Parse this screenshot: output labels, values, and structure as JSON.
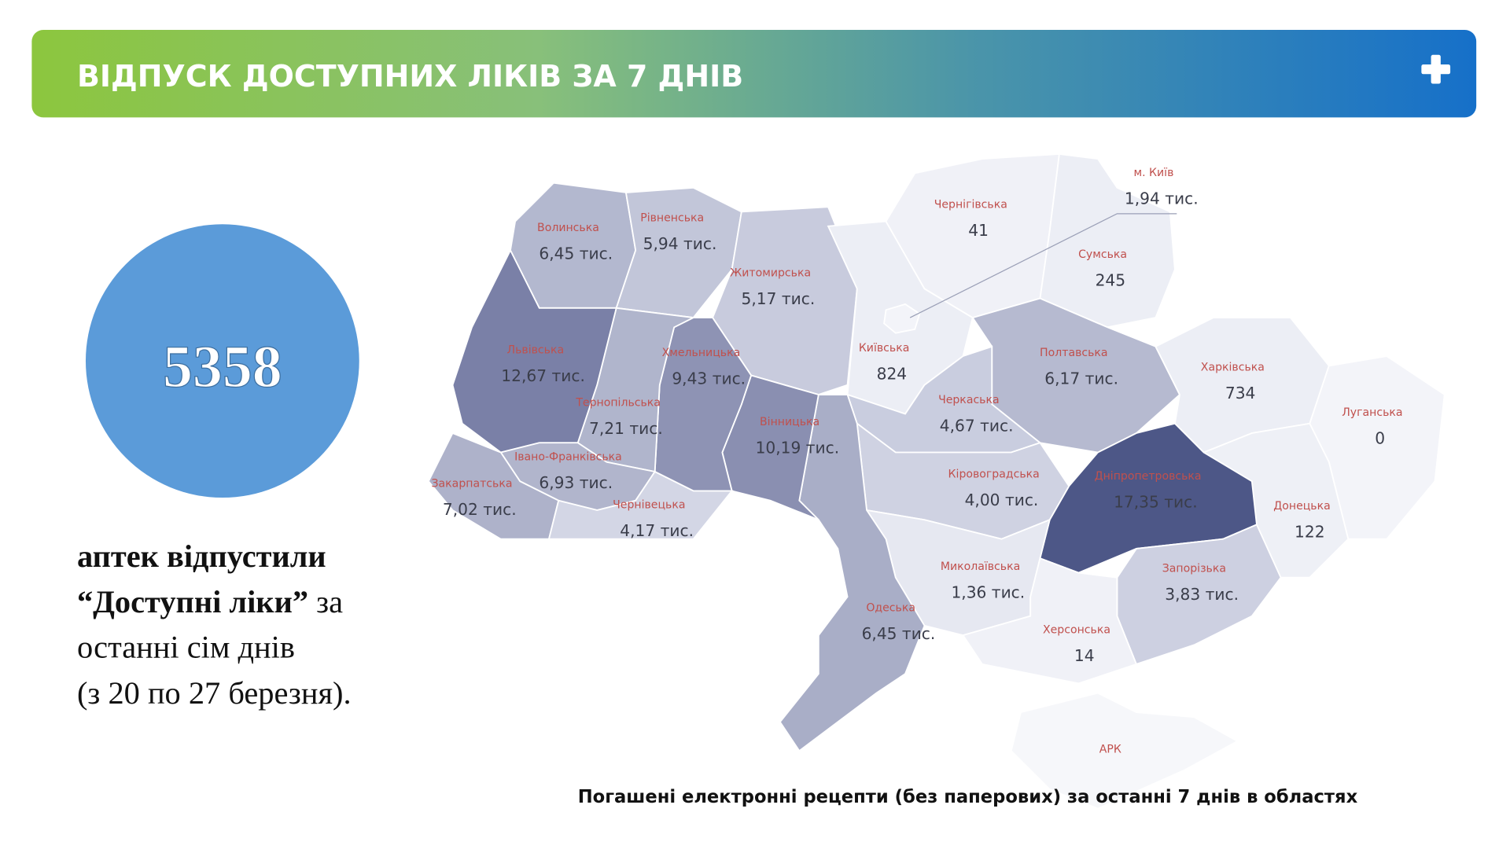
{
  "header": {
    "title": "ВІДПУСК ДОСТУПНИХ ЛІКІВ ЗА 7 ДНІВ"
  },
  "stat": {
    "value": "5358",
    "line1": "аптек відпустили",
    "line2_bold": "“Доступні ліки”",
    "line2_rest": " за",
    "line3": "останні сім днів",
    "line4": "(з 20 по 27 березня)."
  },
  "map": {
    "caption": "Погашені електронні рецепти (без паперових) за останні 7 днів в областях",
    "regions": [
      {
        "name": "Волинська",
        "value": "6,45 тис.",
        "color": "#b3b8cf"
      },
      {
        "name": "Рівненська",
        "value": "5,94 тис.",
        "color": "#c2c6d9"
      },
      {
        "name": "Житомирська",
        "value": "5,17 тис.",
        "color": "#c8cbdd"
      },
      {
        "name": "Київська",
        "value": "824",
        "color": "#eceef5"
      },
      {
        "name": "Чернігівська",
        "value": "41",
        "color": "#f0f1f7"
      },
      {
        "name": "Сумська",
        "value": "245",
        "color": "#eceef5"
      },
      {
        "name": "Полтавська",
        "value": "6,17 тис.",
        "color": "#b6bad0"
      },
      {
        "name": "Харківська",
        "value": "734",
        "color": "#eceef5"
      },
      {
        "name": "Луганська",
        "value": "0",
        "color": "#f3f4f9"
      },
      {
        "name": "Донецька",
        "value": "122",
        "color": "#eef0f6"
      },
      {
        "name": "Дніпропетровська",
        "value": "17,35 тис.",
        "color": "#4d5787"
      },
      {
        "name": "Черкаська",
        "value": "4,67 тис.",
        "color": "#c9cddf"
      },
      {
        "name": "Кіровоградська",
        "value": "4,00 тис.",
        "color": "#cfd2e2"
      },
      {
        "name": "Миколаївська",
        "value": "1,36 тис.",
        "color": "#e6e8f1"
      },
      {
        "name": "Запорізька",
        "value": "3,83 тис.",
        "color": "#cdd0e1"
      },
      {
        "name": "Херсонська",
        "value": "14",
        "color": "#f0f1f7"
      },
      {
        "name": "АРК",
        "color": "#f6f7fa"
      },
      {
        "name": "Одеська",
        "value": "6,45 тис.",
        "color": "#a9aec7"
      },
      {
        "name": "Вінницька",
        "value": "10,19 тис.",
        "color": "#8a8fb1"
      },
      {
        "name": "Хмельницька",
        "value": "9,43 тис.",
        "color": "#8e93b4"
      },
      {
        "name": "Тернопільська",
        "value": "7,21 тис.",
        "color": "#b0b5cc"
      },
      {
        "name": "Львівська",
        "value": "12,67 тис.",
        "color": "#7a80a7"
      },
      {
        "name": "Івано-Франківська",
        "value": "6,93 тис.",
        "color": "#b1b5cc"
      },
      {
        "name": "Закарпатська",
        "value": "7,02 тис.",
        "color": "#aeb2ca"
      },
      {
        "name": "Чернівецька",
        "value": "4,17 тис.",
        "color": "#d3d6e5"
      },
      {
        "name": "м. Київ",
        "value": "1,94 тис.",
        "color": "#f3f4f9"
      }
    ]
  }
}
